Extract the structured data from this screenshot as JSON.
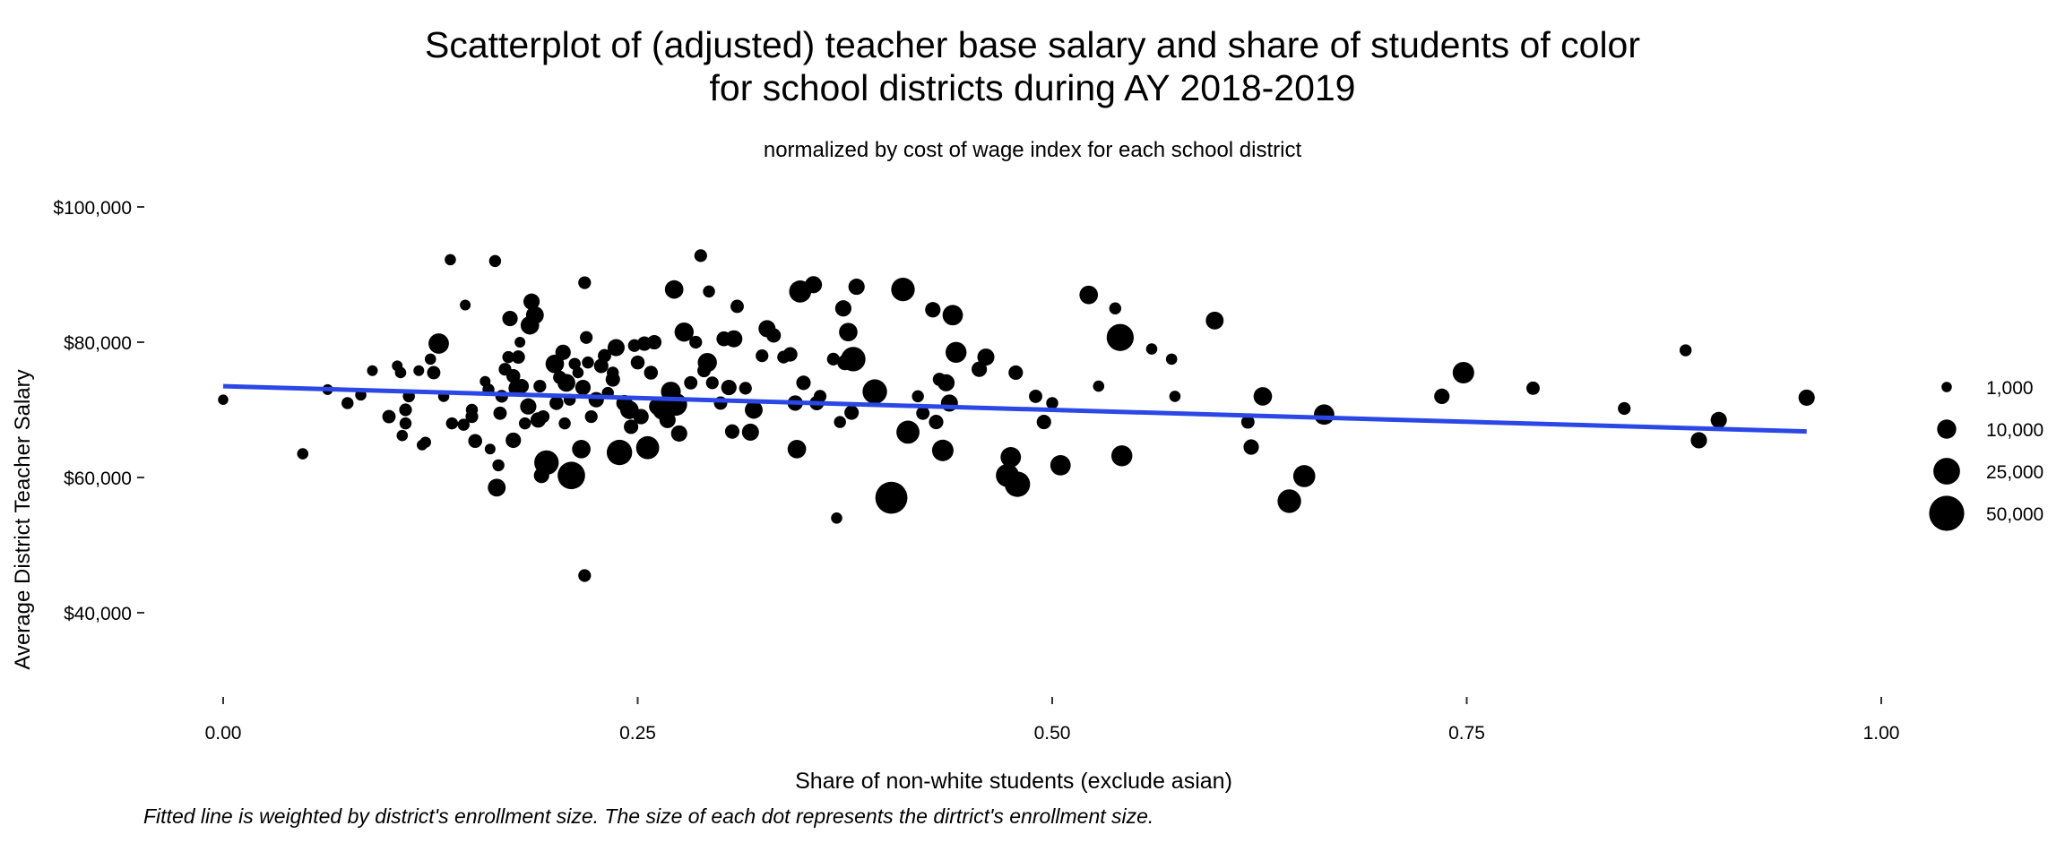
{
  "chart_data": {
    "type": "scatter",
    "title_lines": [
      "Scatterplot of (adjusted) teacher base salary and share of students of color",
      "for school districts during AY 2018-2019"
    ],
    "subtitle": "normalized by cost of wage index for each school district",
    "xlabel": "Share of non-white students (exclude asian)",
    "ylabel": "Average District Teacher Salary",
    "caption": "Fitted line is weighted by district's enrollment size. The size of each dot represents the dirtrict's enrollment size.",
    "xlim": [
      0,
      1
    ],
    "ylim": [
      30000,
      100000
    ],
    "x_ticks": [
      0,
      0.25,
      0.5,
      0.75,
      1.0
    ],
    "x_tick_labels": [
      "0.00",
      "0.25",
      "0.50",
      "0.75",
      "1.00"
    ],
    "y_ticks": [
      40000,
      60000,
      80000,
      100000
    ],
    "y_tick_labels": [
      "$40,000",
      "$60,000",
      "$80,000",
      "$100,000"
    ],
    "grid": false,
    "legend_position": "right",
    "size_legend": {
      "values": [
        1000,
        10000,
        25000,
        50000
      ],
      "labels": [
        "1,000",
        "10,000",
        "25,000",
        "50,000"
      ]
    },
    "fit_line": {
      "x": [
        0,
        0.955
      ],
      "y": [
        73500,
        66800
      ],
      "color": "#2b47e6"
    },
    "point_color": "#000000",
    "points": [
      [
        0.0,
        71500,
        1000
      ],
      [
        0.048,
        63500,
        1500
      ],
      [
        0.063,
        73000,
        1200
      ],
      [
        0.075,
        71000,
        2000
      ],
      [
        0.083,
        72200,
        1500
      ],
      [
        0.09,
        75800,
        1200
      ],
      [
        0.1,
        69000,
        3000
      ],
      [
        0.105,
        76500,
        1200
      ],
      [
        0.107,
        75500,
        1500
      ],
      [
        0.108,
        66200,
        1500
      ],
      [
        0.11,
        68000,
        2000
      ],
      [
        0.11,
        70000,
        2500
      ],
      [
        0.112,
        72000,
        2000
      ],
      [
        0.118,
        75800,
        1200
      ],
      [
        0.12,
        64800,
        1200
      ],
      [
        0.122,
        65200,
        1500
      ],
      [
        0.125,
        77500,
        1500
      ],
      [
        0.127,
        75500,
        3000
      ],
      [
        0.13,
        79800,
        12000
      ],
      [
        0.133,
        72000,
        1500
      ],
      [
        0.137,
        92200,
        1500
      ],
      [
        0.138,
        68000,
        2000
      ],
      [
        0.145,
        67800,
        2000
      ],
      [
        0.146,
        85500,
        1200
      ],
      [
        0.15,
        69000,
        2500
      ],
      [
        0.15,
        70000,
        2000
      ],
      [
        0.152,
        65400,
        3500
      ],
      [
        0.158,
        74200,
        1200
      ],
      [
        0.16,
        73000,
        2000
      ],
      [
        0.161,
        64200,
        1200
      ],
      [
        0.164,
        92000,
        2000
      ],
      [
        0.165,
        58500,
        8000
      ],
      [
        0.166,
        61800,
        2000
      ],
      [
        0.167,
        69500,
        3000
      ],
      [
        0.168,
        72000,
        2500
      ],
      [
        0.17,
        76000,
        2500
      ],
      [
        0.172,
        77800,
        2000
      ],
      [
        0.173,
        83500,
        5000
      ],
      [
        0.175,
        65500,
        5000
      ],
      [
        0.175,
        75000,
        3500
      ],
      [
        0.177,
        73200,
        6000
      ],
      [
        0.178,
        77800,
        3000
      ],
      [
        0.179,
        80000,
        1200
      ],
      [
        0.18,
        73500,
        4000
      ],
      [
        0.182,
        68000,
        2000
      ],
      [
        0.184,
        70500,
        6000
      ],
      [
        0.185,
        82500,
        9000
      ],
      [
        0.186,
        86000,
        6000
      ],
      [
        0.188,
        84000,
        8000
      ],
      [
        0.19,
        68500,
        5000
      ],
      [
        0.191,
        73500,
        2500
      ],
      [
        0.192,
        60300,
        5000
      ],
      [
        0.193,
        69000,
        2500
      ],
      [
        0.195,
        62200,
        20000
      ],
      [
        0.2,
        76800,
        9000
      ],
      [
        0.201,
        71000,
        3500
      ],
      [
        0.203,
        74800,
        3000
      ],
      [
        0.205,
        78500,
        5000
      ],
      [
        0.206,
        68000,
        2000
      ],
      [
        0.207,
        74000,
        8000
      ],
      [
        0.209,
        71500,
        2000
      ],
      [
        0.21,
        60300,
        27000
      ],
      [
        0.212,
        76800,
        2000
      ],
      [
        0.214,
        75500,
        1500
      ],
      [
        0.216,
        64200,
        9000
      ],
      [
        0.217,
        73300,
        5000
      ],
      [
        0.218,
        88800,
        2500
      ],
      [
        0.218,
        45500,
        2500
      ],
      [
        0.219,
        80700,
        2500
      ],
      [
        0.22,
        77000,
        2000
      ],
      [
        0.222,
        69000,
        2500
      ],
      [
        0.225,
        71500,
        5000
      ],
      [
        0.228,
        76500,
        4000
      ],
      [
        0.23,
        78000,
        3000
      ],
      [
        0.232,
        72500,
        2000
      ],
      [
        0.235,
        74500,
        4000
      ],
      [
        0.235,
        75500,
        2000
      ],
      [
        0.237,
        79200,
        7000
      ],
      [
        0.239,
        63700,
        22000
      ],
      [
        0.242,
        71000,
        6000
      ],
      [
        0.245,
        70000,
        9000
      ],
      [
        0.246,
        67500,
        4000
      ],
      [
        0.248,
        79500,
        2500
      ],
      [
        0.25,
        77000,
        3500
      ],
      [
        0.252,
        69000,
        5000
      ],
      [
        0.254,
        79800,
        4000
      ],
      [
        0.256,
        64400,
        17000
      ],
      [
        0.258,
        75500,
        3500
      ],
      [
        0.26,
        80000,
        4000
      ],
      [
        0.262,
        70500,
        7000
      ],
      [
        0.265,
        70000,
        11000
      ],
      [
        0.268,
        68500,
        6000
      ],
      [
        0.27,
        72700,
        11000
      ],
      [
        0.272,
        87800,
        9000
      ],
      [
        0.273,
        70800,
        16000
      ],
      [
        0.275,
        66500,
        6000
      ],
      [
        0.278,
        81500,
        10000
      ],
      [
        0.282,
        74000,
        3000
      ],
      [
        0.285,
        80000,
        2500
      ],
      [
        0.288,
        92800,
        2500
      ],
      [
        0.29,
        75800,
        3000
      ],
      [
        0.292,
        77000,
        10000
      ],
      [
        0.293,
        87500,
        2000
      ],
      [
        0.295,
        74000,
        2500
      ],
      [
        0.3,
        71000,
        3000
      ],
      [
        0.302,
        80500,
        4500
      ],
      [
        0.305,
        73300,
        5000
      ],
      [
        0.307,
        66800,
        4000
      ],
      [
        0.308,
        80500,
        7000
      ],
      [
        0.31,
        85300,
        3000
      ],
      [
        0.315,
        73200,
        2500
      ],
      [
        0.318,
        66700,
        7000
      ],
      [
        0.32,
        70000,
        8000
      ],
      [
        0.325,
        78000,
        2500
      ],
      [
        0.328,
        82000,
        7000
      ],
      [
        0.332,
        81000,
        4000
      ],
      [
        0.338,
        77800,
        2500
      ],
      [
        0.342,
        78200,
        4000
      ],
      [
        0.345,
        71000,
        5000
      ],
      [
        0.346,
        64200,
        9000
      ],
      [
        0.348,
        87500,
        15000
      ],
      [
        0.35,
        74000,
        4000
      ],
      [
        0.356,
        88500,
        7000
      ],
      [
        0.358,
        71000,
        4000
      ],
      [
        0.36,
        72000,
        2500
      ],
      [
        0.368,
        77500,
        2500
      ],
      [
        0.37,
        54000,
        1500
      ],
      [
        0.372,
        68200,
        2000
      ],
      [
        0.374,
        85000,
        6000
      ],
      [
        0.375,
        77000,
        5000
      ],
      [
        0.377,
        81500,
        9000
      ],
      [
        0.379,
        69600,
        4000
      ],
      [
        0.38,
        77500,
        20000
      ],
      [
        0.382,
        88200,
        6000
      ],
      [
        0.393,
        72700,
        20000
      ],
      [
        0.403,
        57000,
        40000
      ],
      [
        0.41,
        87800,
        18000
      ],
      [
        0.413,
        66700,
        17000
      ],
      [
        0.419,
        72000,
        2000
      ],
      [
        0.422,
        69500,
        3000
      ],
      [
        0.428,
        84800,
        5000
      ],
      [
        0.43,
        68200,
        4000
      ],
      [
        0.432,
        74500,
        3000
      ],
      [
        0.434,
        64000,
        14000
      ],
      [
        0.436,
        74000,
        7000
      ],
      [
        0.438,
        71000,
        7000
      ],
      [
        0.44,
        84000,
        12000
      ],
      [
        0.442,
        78500,
        13000
      ],
      [
        0.456,
        76000,
        5000
      ],
      [
        0.46,
        77800,
        7000
      ],
      [
        0.473,
        60300,
        17000
      ],
      [
        0.475,
        63000,
        12000
      ],
      [
        0.478,
        75500,
        4000
      ],
      [
        0.479,
        59000,
        22000
      ],
      [
        0.49,
        72000,
        3000
      ],
      [
        0.495,
        68200,
        4000
      ],
      [
        0.5,
        71000,
        2000
      ],
      [
        0.505,
        61800,
        12000
      ],
      [
        0.522,
        87000,
        9000
      ],
      [
        0.528,
        73500,
        1500
      ],
      [
        0.538,
        85000,
        2000
      ],
      [
        0.541,
        80700,
        26000
      ],
      [
        0.542,
        63200,
        13000
      ],
      [
        0.56,
        79000,
        1500
      ],
      [
        0.572,
        77500,
        1500
      ],
      [
        0.574,
        72000,
        1500
      ],
      [
        0.598,
        83200,
        8000
      ],
      [
        0.618,
        68200,
        3000
      ],
      [
        0.62,
        64500,
        5000
      ],
      [
        0.627,
        72000,
        9000
      ],
      [
        0.643,
        56500,
        18000
      ],
      [
        0.652,
        60200,
        15000
      ],
      [
        0.664,
        69300,
        12000
      ],
      [
        0.735,
        72000,
        5000
      ],
      [
        0.748,
        75500,
        14000
      ],
      [
        0.79,
        73200,
        3000
      ],
      [
        0.845,
        70200,
        2500
      ],
      [
        0.882,
        78800,
        2000
      ],
      [
        0.89,
        65500,
        6000
      ],
      [
        0.902,
        68500,
        6000
      ],
      [
        0.955,
        71800,
        6000
      ]
    ]
  }
}
